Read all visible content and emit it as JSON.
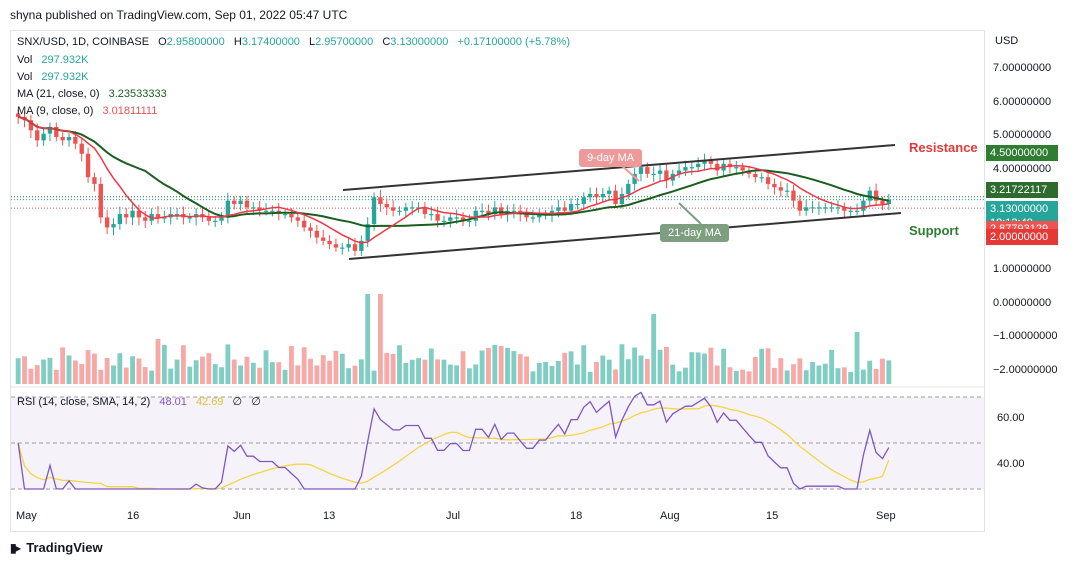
{
  "header": {
    "publisher": "shyna published on TradingView.com, Sep 01, 2022 05:47 UTC"
  },
  "legend": {
    "symbol": "SNX/USD, 1D, COINBASE",
    "o_label": "O",
    "o_value": "2.95800000",
    "h_label": "H",
    "h_value": "3.17400000",
    "l_label": "L",
    "l_value": "2.95700000",
    "c_label": "C",
    "c_value": "3.13000000",
    "change": "+0.17100000 (+5.78%)",
    "vol1_label": "Vol",
    "vol1_value": "297.932K",
    "vol2_label": "Vol",
    "vol2_value": "297.932K",
    "ma21_label": "MA (21, close, 0)",
    "ma21_value": "3.23533333",
    "ma9_label": "MA (9, close, 0)",
    "ma9_value": "3.01811111",
    "rsi_label": "RSI (14, close, SMA, 14, 2)",
    "rsi_value": "48.01",
    "rsi_sma": "42.69",
    "rsi_z1": "∅",
    "rsi_z2": "∅"
  },
  "currency": "USD",
  "price_axis": [
    "7.00000000",
    "6.00000000",
    "5.00000000",
    "4.00000000",
    "1.00000000",
    "0.00000000",
    "−1.00000000",
    "−2.00000000"
  ],
  "price_tags": [
    {
      "value": "4.50000000",
      "color": "#2e7d32"
    },
    {
      "value": "3.21722117",
      "color": "#2e6b2e"
    },
    {
      "value": "3.13000000",
      "color": "#26a69a",
      "sub": "18:12:49"
    },
    {
      "value": "2.87793129",
      "color": "#ef5350"
    },
    {
      "value": "2.00000000",
      "color": "#e53935"
    }
  ],
  "rsi_axis": [
    "60.00",
    "40.00"
  ],
  "x_axis": [
    "May",
    "16",
    "Jun",
    "13",
    "Jul",
    "18",
    "Aug",
    "15",
    "Sep"
  ],
  "annotations": {
    "resistance": "Resistance",
    "support": "Support",
    "ma9": "9-day MA",
    "ma21": "21-day MA"
  },
  "colors": {
    "up": "#26a69a",
    "down": "#ef5350",
    "ma9": "#f23645",
    "ma21": "#1b5e20",
    "rsi": "#7e57c2",
    "rsi_sma": "#f5d544"
  },
  "footer": {
    "brand": "TradingView"
  },
  "chart_data": {
    "type": "candlestick",
    "symbol": "SNX/USD",
    "timeframe": "1D",
    "x_labels": [
      "May",
      "16",
      "Jun",
      "13",
      "Jul",
      "18",
      "Aug",
      "15",
      "Sep"
    ],
    "ylim": [
      -2,
      7.5
    ],
    "closes": [
      5.6,
      5.5,
      5.2,
      4.9,
      5.1,
      5.3,
      5.0,
      4.9,
      5.0,
      4.8,
      4.5,
      3.8,
      3.6,
      2.6,
      2.3,
      2.4,
      2.7,
      2.6,
      2.8,
      2.6,
      2.5,
      2.7,
      2.6,
      2.6,
      2.7,
      2.7,
      2.6,
      2.6,
      2.7,
      2.6,
      2.5,
      2.5,
      2.6,
      3.1,
      3.0,
      3.1,
      2.9,
      2.9,
      2.8,
      2.8,
      2.8,
      2.7,
      2.7,
      2.6,
      2.5,
      2.3,
      2.2,
      2.0,
      1.9,
      1.8,
      1.7,
      1.7,
      1.8,
      1.6,
      1.9,
      2.4,
      3.2,
      3.0,
      2.9,
      2.8,
      2.8,
      2.9,
      2.9,
      2.9,
      2.7,
      2.7,
      2.5,
      2.5,
      2.6,
      2.6,
      2.5,
      2.5,
      2.8,
      2.8,
      2.7,
      2.9,
      2.7,
      2.8,
      2.8,
      2.7,
      2.6,
      2.6,
      2.7,
      2.7,
      2.8,
      2.9,
      2.8,
      3.0,
      3.0,
      3.2,
      3.3,
      3.2,
      3.3,
      3.4,
      3.0,
      3.3,
      3.6,
      3.9,
      4.1,
      3.9,
      3.9,
      4.0,
      3.7,
      3.9,
      4.0,
      4.1,
      4.1,
      4.2,
      4.3,
      4.2,
      4.0,
      4.2,
      4.1,
      4.1,
      4.0,
      3.9,
      3.8,
      3.8,
      3.6,
      3.5,
      3.4,
      3.4,
      3.1,
      2.8,
      2.9,
      2.9,
      2.9,
      2.9,
      2.9,
      2.9,
      2.8,
      2.8,
      2.8,
      3.1,
      3.4,
      3.1,
      3.0,
      3.13
    ],
    "ma9_last": 3.01811111,
    "ma21_last": 3.23533333,
    "resistance_level": 4.5,
    "support_level": 2.0,
    "volume_last": "297.932K",
    "rsi": {
      "value": 48.01,
      "sma": 42.69,
      "levels": [
        70,
        50,
        30
      ],
      "ylim": [
        20,
        80
      ]
    }
  }
}
